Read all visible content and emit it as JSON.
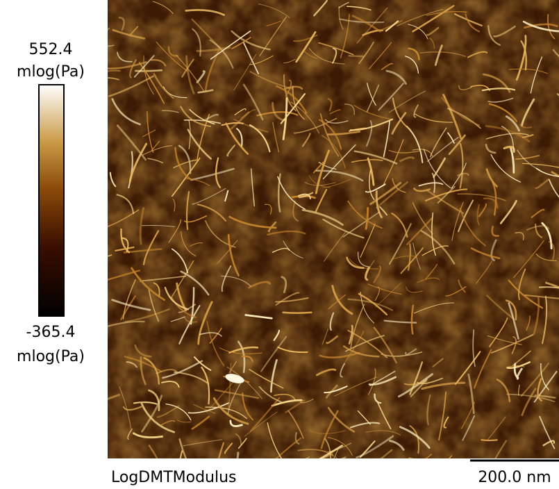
{
  "colorbar": {
    "max": "552.4",
    "max_unit": "mlog(Pa)",
    "min": "-365.4",
    "min_unit": "mlog(Pa)"
  },
  "image": {
    "channel": "LogDMTModulus",
    "scale_bar": "200.0 nm"
  }
}
